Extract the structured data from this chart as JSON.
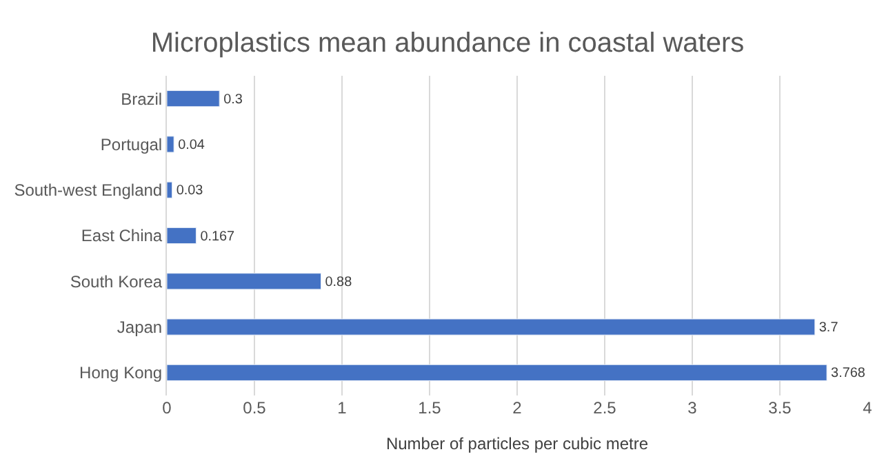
{
  "chart_data": {
    "type": "bar",
    "orientation": "horizontal",
    "title": "Microplastics mean abundance in coastal waters",
    "xlabel": "Number of particles per cubic metre",
    "categories": [
      "Brazil",
      "Portugal",
      "South-west England",
      "East China",
      "South Korea",
      "Japan",
      "Hong Kong"
    ],
    "values": [
      0.3,
      0.04,
      0.03,
      0.167,
      0.88,
      3.7,
      3.768
    ],
    "color": "#4472c4",
    "data_labels": true,
    "xlim": [
      0,
      4
    ],
    "xticks": [
      0,
      0.5,
      1,
      1.5,
      2,
      2.5,
      3,
      3.5,
      4
    ],
    "grid": "x"
  }
}
